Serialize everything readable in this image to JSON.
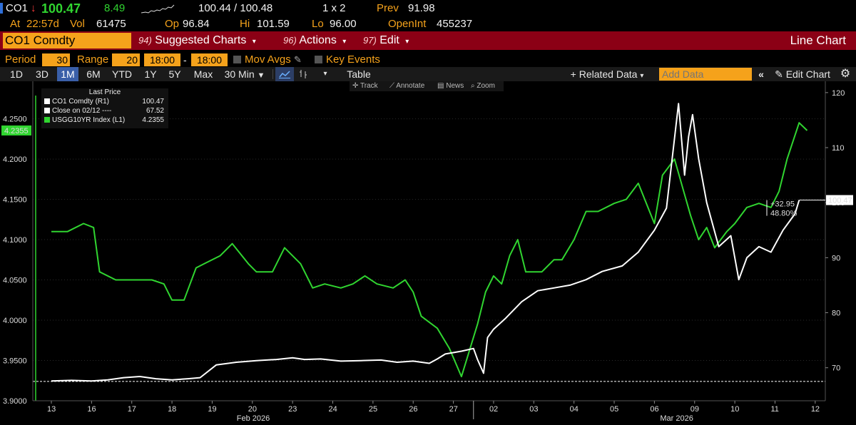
{
  "header": {
    "ticker": "CO1",
    "arrow": "↓",
    "last": "100.47",
    "change": "8.49",
    "bid_ask": "100.44 / 100.48",
    "size": "1 x 2",
    "prev_label": "Prev",
    "prev_value": "91.98",
    "at_label": "At",
    "time": "22:57d",
    "vol_label": "Vol",
    "vol": "61475",
    "open_label": "Op",
    "open": "96.84",
    "hi_label": "Hi",
    "hi": "101.59",
    "lo_label": "Lo",
    "lo": "96.00",
    "oi_label": "OpenInt",
    "oi": "455237"
  },
  "menubar": {
    "security": "CO1 Comdty",
    "suggested_num": "94)",
    "suggested_label": "Suggested Charts",
    "actions_num": "96)",
    "actions_label": "Actions",
    "edit_num": "97)",
    "edit_label": "Edit",
    "chart_type": "Line Chart"
  },
  "period_row": {
    "period_label": "Period",
    "period_value": "30",
    "range_label": "Range",
    "range_value": "20",
    "range_start": "18:00",
    "range_sep": "-",
    "range_end": "18:00",
    "mov_avgs": "Mov Avgs",
    "key_events": "Key Events"
  },
  "toolbar": {
    "ranges": [
      "1D",
      "3D",
      "1M",
      "6M",
      "YTD",
      "1Y",
      "5Y",
      "Max"
    ],
    "selected": "1M",
    "interval": "30 Min",
    "table": "Table",
    "related_data": "+ Related Data",
    "add_data_placeholder": "Add Data",
    "edit_chart": "Edit Chart"
  },
  "chart_tools": [
    "Track",
    "Annotate",
    "News",
    "Zoom"
  ],
  "legend": {
    "title": "Last Price",
    "items": [
      {
        "name": "CO1 Comdty  (R1)",
        "value": "100.47",
        "color": "#ffffff"
      },
      {
        "name": "Close on 02/12 ----",
        "value": "67.52",
        "color": "#ffffff"
      },
      {
        "name": "USGG10YR Index  (L1)",
        "value": "4.2355",
        "color": "#30d530"
      }
    ]
  },
  "colors": {
    "accent": "#f5a21b",
    "menubar": "#8b0015",
    "series_green": "#30d530",
    "series_white": "#ffffff"
  },
  "chart_data": {
    "type": "line",
    "x_labels": [
      "13",
      "16",
      "17",
      "18",
      "19",
      "20",
      "23",
      "24",
      "25",
      "26",
      "27",
      "02",
      "03",
      "04",
      "05",
      "06",
      "09",
      "10",
      "11",
      "12"
    ],
    "month_labels": [
      "Feb 2026",
      "Mar 2026"
    ],
    "left_axis": {
      "ticks": [
        "3.9000",
        "3.9500",
        "4.0000",
        "4.0500",
        "4.1000",
        "4.1500",
        "4.2000",
        "4.2500"
      ],
      "range": [
        3.9,
        4.27
      ],
      "current": "4.2355"
    },
    "right_axis": {
      "ticks": [
        "70",
        "80",
        "90",
        "100",
        "110",
        "120"
      ],
      "range": [
        64,
        120.5
      ],
      "current": "100.47"
    },
    "annotation_change": "+32.95",
    "annotation_pct": "48.80%",
    "reference_line": 67.52,
    "series": [
      {
        "name": "USGG10YR Index",
        "axis": "left",
        "color": "#30d530",
        "x": [
          0,
          0.4,
          0.8,
          1.05,
          1.2,
          1.6,
          2.0,
          2.5,
          2.8,
          3.0,
          3.3,
          3.6,
          3.8,
          4.2,
          4.5,
          4.9,
          5.1,
          5.5,
          5.8,
          6.2,
          6.5,
          6.8,
          7.2,
          7.5,
          7.8,
          8.1,
          8.5,
          8.8,
          9.0,
          9.2,
          9.6,
          9.9,
          10.2,
          10.6,
          10.8,
          11.0,
          11.2,
          11.4,
          11.6,
          11.8,
          12.2,
          12.5,
          12.7,
          13.0,
          13.3,
          13.6,
          14.0,
          14.3,
          14.6,
          15.0,
          15.2,
          15.5,
          15.7,
          15.9,
          16.1,
          16.3,
          16.5,
          16.8,
          17.0,
          17.3,
          17.6,
          17.9,
          18.1,
          18.3,
          18.6,
          18.8
        ],
        "y": [
          4.11,
          4.11,
          4.12,
          4.115,
          4.06,
          4.05,
          4.05,
          4.05,
          4.045,
          4.025,
          4.025,
          4.065,
          4.07,
          4.08,
          4.095,
          4.07,
          4.06,
          4.06,
          4.09,
          4.07,
          4.04,
          4.045,
          4.04,
          4.045,
          4.055,
          4.045,
          4.04,
          4.05,
          4.035,
          4.005,
          3.99,
          3.965,
          3.93,
          3.995,
          4.035,
          4.055,
          4.045,
          4.08,
          4.1,
          4.06,
          4.06,
          4.075,
          4.075,
          4.1,
          4.135,
          4.135,
          4.145,
          4.15,
          4.17,
          4.12,
          4.18,
          4.2,
          4.165,
          4.13,
          4.1,
          4.115,
          4.09,
          4.11,
          4.12,
          4.14,
          4.145,
          4.14,
          4.16,
          4.2,
          4.245,
          4.2355
        ]
      },
      {
        "name": "CO1 Comdty",
        "axis": "right",
        "color": "#ffffff",
        "x": [
          0,
          0.5,
          1.0,
          1.4,
          1.8,
          2.2,
          2.6,
          3.0,
          3.4,
          3.7,
          4.1,
          4.6,
          5.1,
          5.6,
          6.0,
          6.3,
          6.7,
          7.2,
          7.7,
          8.2,
          8.6,
          9.0,
          9.4,
          9.6,
          9.8,
          10.2,
          10.5,
          10.6,
          10.75,
          10.85,
          11.0,
          11.3,
          11.7,
          12.1,
          12.5,
          12.9,
          13.3,
          13.7,
          14.2,
          14.6,
          15.0,
          15.3,
          15.6,
          15.75,
          15.85,
          15.95,
          16.1,
          16.3,
          16.6,
          16.9,
          17.1,
          17.3,
          17.6,
          17.9,
          18.2,
          18.5,
          18.6
        ],
        "y": [
          67.6,
          67.7,
          67.6,
          67.8,
          68.2,
          68.4,
          68.0,
          67.8,
          68.0,
          68.2,
          70.5,
          71.0,
          71.3,
          71.5,
          71.8,
          71.5,
          71.6,
          71.2,
          71.3,
          71.4,
          71.0,
          71.2,
          70.8,
          71.6,
          72.5,
          73.0,
          73.5,
          71.5,
          69.0,
          75.5,
          77.0,
          79.0,
          82.0,
          84.0,
          84.5,
          85.0,
          86.0,
          87.5,
          88.5,
          91.0,
          95.0,
          99.0,
          118.0,
          105.0,
          112.0,
          116.0,
          108.0,
          100.0,
          92.0,
          94.0,
          86.0,
          90.0,
          92.0,
          91.0,
          95.0,
          98.0,
          100.47
        ]
      }
    ]
  }
}
